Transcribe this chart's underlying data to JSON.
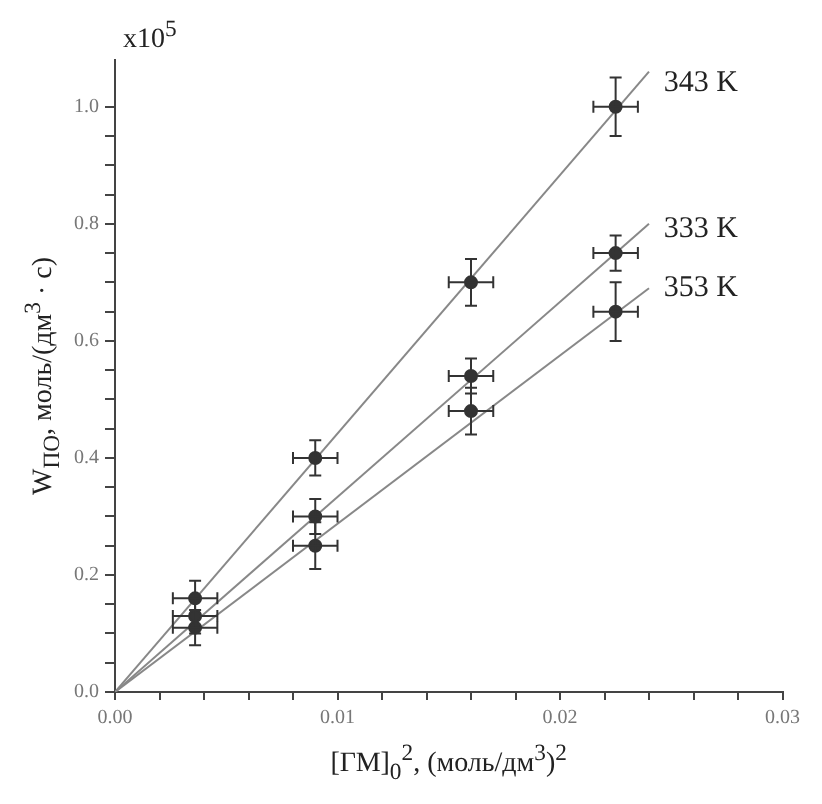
{
  "chart_data": {
    "type": "scatter",
    "xlabel": "[ГМ]$_{0}$$^{2}$, (моль/дм$^{3}$)$^{2}$",
    "ylabel": "W$_{ПО}$, моль/(дм$^{3}$ · с)",
    "annotations": [
      "x10$^{5}$"
    ],
    "xlim": [
      0,
      0.03
    ],
    "ylim": [
      0,
      1.08
    ],
    "xticks": [
      {
        "value": 0,
        "label": "0.00"
      },
      {
        "value": 0.002,
        "label": null
      },
      {
        "value": 0.004,
        "label": null
      },
      {
        "value": 0.006,
        "label": null
      },
      {
        "value": 0.008,
        "label": null
      },
      {
        "value": 0.01,
        "label": "0.01"
      },
      {
        "value": 0.012,
        "label": null
      },
      {
        "value": 0.014,
        "label": null
      },
      {
        "value": 0.016,
        "label": null
      },
      {
        "value": 0.018,
        "label": null
      },
      {
        "value": 0.02,
        "label": "0.02"
      },
      {
        "value": 0.022,
        "label": null
      },
      {
        "value": 0.024,
        "label": null
      },
      {
        "value": 0.026,
        "label": null
      },
      {
        "value": 0.028,
        "label": null
      },
      {
        "value": 0.03,
        "label": "0.03"
      }
    ],
    "yticks": [
      {
        "value": 0,
        "label": "0.0"
      },
      {
        "value": 0.05,
        "label": null
      },
      {
        "value": 0.1,
        "label": null
      },
      {
        "value": 0.15,
        "label": null
      },
      {
        "value": 0.2,
        "label": "0.2"
      },
      {
        "value": 0.25,
        "label": null
      },
      {
        "value": 0.3,
        "label": null
      },
      {
        "value": 0.35,
        "label": null
      },
      {
        "value": 0.4,
        "label": "0.4"
      },
      {
        "value": 0.45,
        "label": null
      },
      {
        "value": 0.5,
        "label": null
      },
      {
        "value": 0.55,
        "label": null
      },
      {
        "value": 0.6,
        "label": "0.6"
      },
      {
        "value": 0.65,
        "label": null
      },
      {
        "value": 0.7,
        "label": null
      },
      {
        "value": 0.75,
        "label": null
      },
      {
        "value": 0.8,
        "label": "0.8"
      },
      {
        "value": 0.85,
        "label": null
      },
      {
        "value": 0.9,
        "label": null
      },
      {
        "value": 0.95,
        "label": null
      },
      {
        "value": 1.0,
        "label": "1.0"
      }
    ],
    "grid": false,
    "legend": false,
    "marker": "circle",
    "series": [
      {
        "name": "343 K",
        "color": "#333333",
        "x": [
          0.0036,
          0.009,
          0.016,
          0.0225
        ],
        "values": [
          0.16,
          0.4,
          0.7,
          1.0
        ],
        "errors": [
          0.03,
          0.03,
          0.04,
          0.05
        ],
        "xerrors": [
          0.001,
          0.001,
          0.001,
          0.001
        ]
      },
      {
        "name": "333 K",
        "color": "#333333",
        "x": [
          0.0036,
          0.009,
          0.016,
          0.0225
        ],
        "values": [
          0.13,
          0.3,
          0.54,
          0.75
        ],
        "errors": [
          0.03,
          0.03,
          0.03,
          0.03
        ],
        "xerrors": [
          0.001,
          0.001,
          0.001,
          0.001
        ]
      },
      {
        "name": "353 K",
        "color": "#333333",
        "x": [
          0.0036,
          0.009,
          0.016,
          0.0225
        ],
        "values": [
          0.11,
          0.25,
          0.48,
          0.65
        ],
        "errors": [
          0.03,
          0.04,
          0.04,
          0.05
        ],
        "xerrors": [
          0.001,
          0.001,
          0.001,
          0.001
        ]
      },
      {
        "type": "line",
        "color": "#888888",
        "x": [
          0,
          0.024
        ],
        "values": [
          0,
          1.06
        ],
        "marker": "none"
      },
      {
        "type": "line",
        "color": "#888888",
        "x": [
          0,
          0.024
        ],
        "values": [
          0,
          0.8
        ],
        "marker": "none"
      },
      {
        "type": "line",
        "color": "#888888",
        "x": [
          0,
          0.024
        ],
        "values": [
          0,
          0.69
        ],
        "marker": "none"
      }
    ]
  }
}
